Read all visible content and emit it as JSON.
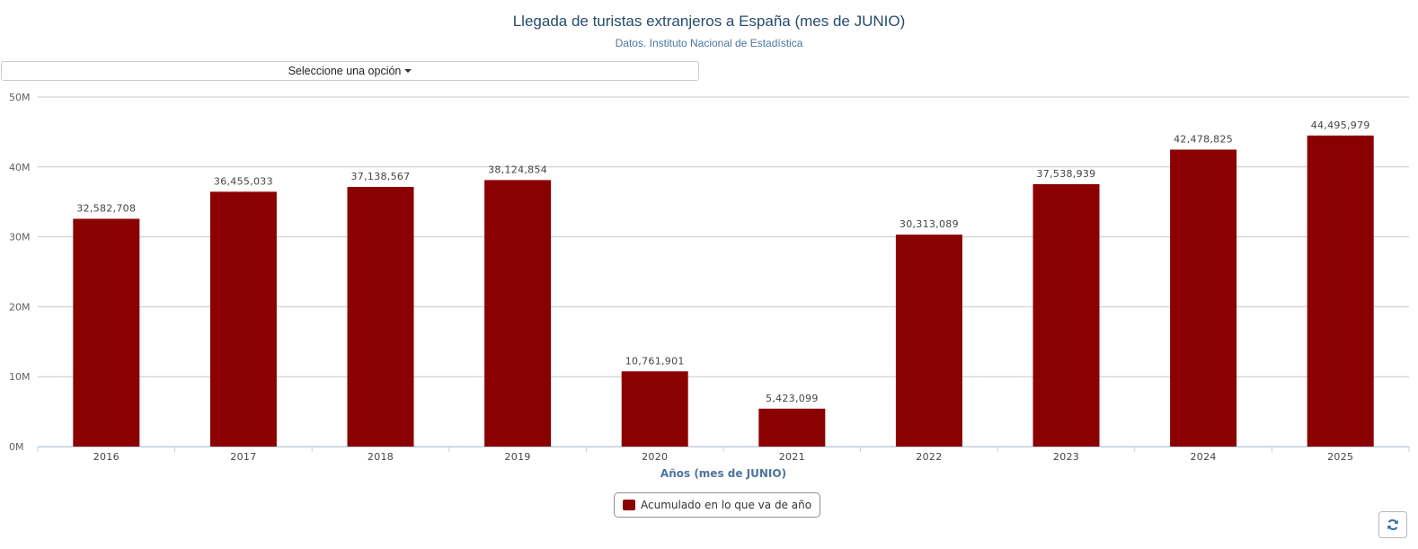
{
  "header": {
    "title": "Llegada de turistas extranjeros a España (mes de JUNIO)",
    "subtitle": "Datos. Instituto Nacional de Estadística"
  },
  "selector": {
    "label": "Seleccione una opción"
  },
  "refresh": {
    "icon": "refresh-icon"
  },
  "chart_data": {
    "type": "bar",
    "title": "Llegada de turistas extranjeros a España (mes de JUNIO)",
    "subtitle": "Datos. Instituto Nacional de Estadística",
    "xlabel": "Años (mes de JUNIO)",
    "ylabel": "",
    "categories": [
      "2016",
      "2017",
      "2018",
      "2019",
      "2020",
      "2021",
      "2022",
      "2023",
      "2024",
      "2025"
    ],
    "series": [
      {
        "name": "Acumulado en lo que va de año",
        "color": "#8b0000",
        "values": [
          32582708,
          36455033,
          37138567,
          38124854,
          10761901,
          5423099,
          30313089,
          37538939,
          42478825,
          44495979
        ],
        "labels": [
          "32,582,708",
          "36,455,033",
          "37,138,567",
          "38,124,854",
          "10,761,901",
          "5,423,099",
          "30,313,089",
          "37,538,939",
          "42,478,825",
          "44,495,979"
        ]
      }
    ],
    "ylim": [
      0,
      50000000
    ],
    "yticks": [
      0,
      10000000,
      20000000,
      30000000,
      40000000,
      50000000
    ],
    "ytick_labels": [
      "0M",
      "10M",
      "20M",
      "30M",
      "40M",
      "50M"
    ],
    "grid": true,
    "legend_position": "bottom-center"
  }
}
